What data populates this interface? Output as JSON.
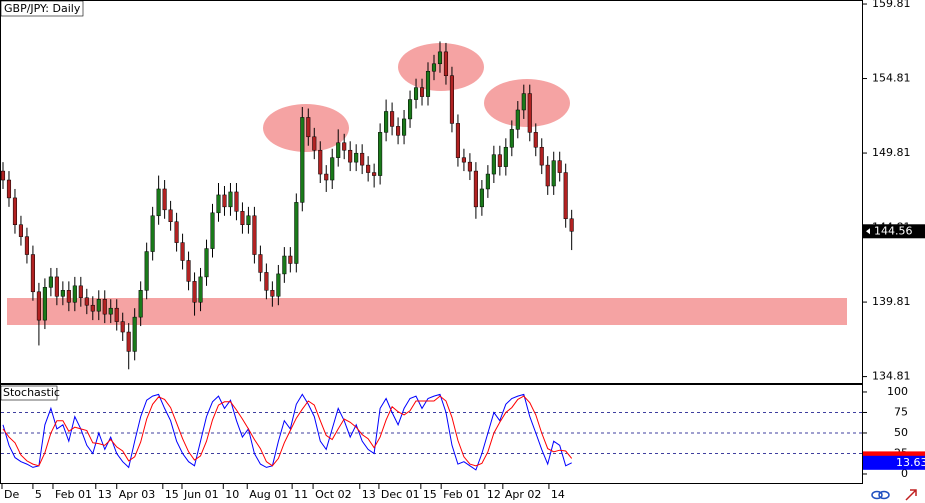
{
  "chart_data": [
    {
      "type": "candlestick",
      "title": "GBP/JPY: Daily",
      "up_color": "#1a7a1a",
      "down_color": "#b22222",
      "open": [
        148.6,
        148.0,
        146.8,
        145.0,
        144.2,
        143.0,
        140.5,
        138.6,
        140.8,
        141.5,
        140.2,
        140.6,
        139.8,
        140.9,
        140.1,
        139.6,
        139.2,
        140.0,
        139.0,
        139.4,
        138.5,
        137.8,
        136.5,
        138.8,
        140.6,
        143.2,
        145.6,
        147.4,
        146.0,
        145.2,
        143.8,
        142.6,
        141.2,
        139.8,
        141.5,
        143.4,
        145.8,
        147.0,
        146.2,
        147.2,
        145.9,
        145.0,
        145.6,
        143.0,
        141.8,
        140.6,
        140.2,
        141.7,
        142.9,
        142.4,
        146.5,
        152.2,
        150.9,
        150.0,
        148.4,
        148.0,
        149.5,
        150.5,
        150.0,
        149.2,
        149.8,
        149.0,
        148.5,
        148.3,
        151.2,
        152.6,
        151.6,
        151.0,
        152.1,
        153.4,
        154.2,
        153.6,
        155.3,
        155.8,
        156.6,
        155.0,
        151.8,
        149.5,
        149.2,
        148.6,
        146.2,
        147.4,
        148.4,
        149.7,
        148.9,
        150.2,
        151.4,
        152.7,
        153.8,
        151.2,
        150.2,
        149.0,
        147.6,
        149.3,
        148.5,
        145.4
      ],
      "high": [
        149.2,
        148.6,
        147.4,
        145.6,
        144.8,
        143.6,
        141.1,
        141.4,
        142.1,
        142.1,
        141.2,
        141.2,
        141.5,
        141.5,
        140.7,
        140.2,
        140.6,
        140.6,
        140.0,
        140.0,
        139.1,
        138.4,
        139.4,
        141.2,
        143.8,
        146.2,
        148.3,
        148.0,
        146.6,
        145.8,
        144.4,
        143.2,
        141.8,
        142.1,
        144.0,
        146.4,
        147.8,
        147.6,
        147.8,
        147.8,
        146.5,
        146.2,
        146.2,
        143.6,
        142.4,
        141.2,
        142.3,
        143.5,
        143.5,
        147.1,
        152.9,
        152.8,
        151.5,
        150.6,
        149.0,
        150.1,
        151.4,
        151.1,
        150.6,
        150.4,
        150.4,
        149.6,
        149.1,
        151.8,
        153.4,
        153.2,
        152.2,
        152.7,
        154.0,
        154.8,
        154.8,
        155.9,
        156.4,
        157.3,
        157.2,
        155.6,
        152.4,
        150.1,
        149.8,
        149.2,
        148.0,
        149.0,
        150.3,
        150.3,
        150.8,
        152.0,
        153.3,
        154.4,
        154.4,
        151.8,
        150.8,
        149.6,
        149.9,
        149.9,
        149.1,
        146.0
      ],
      "low": [
        147.4,
        146.2,
        144.4,
        143.6,
        142.4,
        139.9,
        136.9,
        138.0,
        140.2,
        139.6,
        139.6,
        139.2,
        139.2,
        139.5,
        139.0,
        138.6,
        138.6,
        138.4,
        138.4,
        137.9,
        137.2,
        135.3,
        135.9,
        138.2,
        140.0,
        142.6,
        145.0,
        145.4,
        144.6,
        143.2,
        142.0,
        140.6,
        138.9,
        139.2,
        140.9,
        142.8,
        145.2,
        145.6,
        145.6,
        145.3,
        144.4,
        144.4,
        142.4,
        141.2,
        140.0,
        139.5,
        139.6,
        141.1,
        141.8,
        141.8,
        145.9,
        150.3,
        149.4,
        147.8,
        147.2,
        147.4,
        148.9,
        149.4,
        148.6,
        148.6,
        148.4,
        147.9,
        147.5,
        147.7,
        150.6,
        151.0,
        150.4,
        150.4,
        151.5,
        152.8,
        153.0,
        153.0,
        154.7,
        155.2,
        154.4,
        151.2,
        148.9,
        148.6,
        148.0,
        145.4,
        145.6,
        146.8,
        147.8,
        148.3,
        148.3,
        149.6,
        150.8,
        152.1,
        150.6,
        149.6,
        148.4,
        147.0,
        147.0,
        147.9,
        144.8,
        143.3
      ],
      "close": [
        148.0,
        146.8,
        145.0,
        144.2,
        143.0,
        140.5,
        138.6,
        140.8,
        141.5,
        140.2,
        140.6,
        139.8,
        140.9,
        140.1,
        139.6,
        139.2,
        140.0,
        139.0,
        139.4,
        138.5,
        137.8,
        136.5,
        138.8,
        140.6,
        143.2,
        145.6,
        147.4,
        146.0,
        145.2,
        143.8,
        142.6,
        141.2,
        139.8,
        141.5,
        143.4,
        145.8,
        147.0,
        146.2,
        147.2,
        145.9,
        145.0,
        145.6,
        143.0,
        141.8,
        140.6,
        140.2,
        141.7,
        142.9,
        142.4,
        146.5,
        152.2,
        150.9,
        150.0,
        148.4,
        148.0,
        149.5,
        150.5,
        150.0,
        149.2,
        149.8,
        149.0,
        148.5,
        148.3,
        151.2,
        152.6,
        151.6,
        151.0,
        152.1,
        153.4,
        154.2,
        153.6,
        155.3,
        155.8,
        156.6,
        155.0,
        151.8,
        149.5,
        149.2,
        148.6,
        146.2,
        147.4,
        148.4,
        149.7,
        148.9,
        150.2,
        151.4,
        152.7,
        153.8,
        151.2,
        150.2,
        149.0,
        147.6,
        149.3,
        148.5,
        145.4,
        144.56
      ],
      "ylim": [
        134.38,
        160.08
      ],
      "yticks": [
        134.81,
        139.81,
        144.81,
        149.81,
        154.81,
        159.81
      ],
      "xlim": [
        -0.5,
        143.5
      ],
      "xticks": [
        {
          "value": -0.17,
          "label": "De"
        },
        {
          "value": 5.0,
          "label": "5"
        },
        {
          "value": 8.35,
          "label": "Feb 01"
        },
        {
          "value": 15.5,
          "label": "13"
        },
        {
          "value": 19.0,
          "label": "Apr 03"
        },
        {
          "value": 26.7,
          "label": "15"
        },
        {
          "value": 29.9,
          "label": "Jun 01"
        },
        {
          "value": 36.8,
          "label": "10"
        },
        {
          "value": 40.8,
          "label": "Aug 01"
        },
        {
          "value": 48.3,
          "label": "11"
        },
        {
          "value": 51.8,
          "label": "Oct 02"
        },
        {
          "value": 59.6,
          "label": "13"
        },
        {
          "value": 62.8,
          "label": "Dec 01"
        },
        {
          "value": 69.8,
          "label": "15"
        },
        {
          "value": 73.2,
          "label": "Feb 01"
        },
        {
          "value": 80.5,
          "label": "12"
        },
        {
          "value": 83.5,
          "label": "Apr 02"
        },
        {
          "value": 91.2,
          "label": "14"
        }
      ]
    },
    {
      "type": "line",
      "title": "Stochastic",
      "ylim": [
        -11,
        108.5
      ],
      "yticks": [
        0,
        25,
        50,
        75,
        100
      ],
      "levels": [
        25,
        50,
        75
      ],
      "series": [
        {
          "color": "#0000ff",
          "values": [
            60,
            35,
            20,
            15,
            12,
            8,
            10,
            60,
            80,
            55,
            60,
            40,
            70,
            55,
            35,
            25,
            50,
            30,
            45,
            25,
            15,
            8,
            40,
            70,
            90,
            95,
            97,
            80,
            65,
            40,
            25,
            15,
            10,
            40,
            70,
            88,
            95,
            80,
            90,
            65,
            45,
            55,
            25,
            12,
            8,
            10,
            40,
            65,
            55,
            85,
            97,
            85,
            70,
            40,
            30,
            55,
            80,
            65,
            45,
            60,
            40,
            30,
            25,
            80,
            92,
            75,
            60,
            80,
            92,
            95,
            80,
            92,
            95,
            97,
            75,
            35,
            12,
            15,
            10,
            5,
            25,
            50,
            75,
            65,
            85,
            92,
            95,
            97,
            70,
            50,
            30,
            12,
            40,
            35,
            10,
            13.63
          ]
        },
        {
          "color": "#ff0000",
          "values": [
            55,
            45,
            38,
            23,
            16,
            12,
            10,
            26,
            50,
            65,
            65,
            52,
            57,
            55,
            53,
            38,
            37,
            35,
            42,
            33,
            28,
            16,
            21,
            39,
            67,
            85,
            94,
            91,
            81,
            62,
            43,
            27,
            17,
            22,
            40,
            66,
            84,
            88,
            88,
            78,
            67,
            55,
            42,
            31,
            15,
            10,
            19,
            38,
            53,
            68,
            79,
            89,
            84,
            65,
            47,
            42,
            55,
            67,
            63,
            57,
            48,
            43,
            32,
            45,
            66,
            82,
            76,
            72,
            77,
            89,
            89,
            89,
            89,
            95,
            89,
            69,
            41,
            21,
            12,
            10,
            13,
            27,
            50,
            63,
            75,
            81,
            91,
            95,
            87,
            72,
            50,
            31,
            27,
            29,
            28,
            19
          ]
        }
      ]
    }
  ]
}
